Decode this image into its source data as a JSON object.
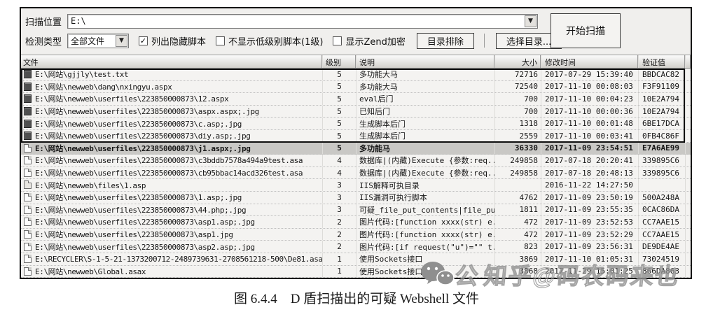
{
  "toolbar": {
    "scan_location_label": "扫描位置",
    "scan_location_value": "E:\\",
    "detect_type_label": "检测类型",
    "detect_type_value": "全部文件",
    "checkboxes": [
      {
        "label": "列出隐藏脚本",
        "checked": true
      },
      {
        "label": "不显示低级别脚本(1级)",
        "checked": false
      },
      {
        "label": "显示Zend加密",
        "checked": false
      }
    ],
    "dir_exclude_label": "目录排除",
    "select_dir_label": "选择目录...",
    "start_scan_label": "开始扫描"
  },
  "table": {
    "headers": [
      "文件",
      "级别",
      "说明",
      "大小",
      "修改时间",
      "验证值"
    ],
    "rows": [
      {
        "icon": "dark",
        "file": "E:\\网站\\gjjly\\test.txt",
        "level": "5",
        "desc": "多功能大马",
        "size": "72716",
        "time": "2017-07-29 15:39:40",
        "hash": "BBDCAC82",
        "boxed": true
      },
      {
        "icon": "dark",
        "file": "E:\\网站\\newweb\\dang\\nxingyu.aspx",
        "level": "5",
        "desc": "多功能大马",
        "size": "72540",
        "time": "2017-11-10 00:08:03",
        "hash": "F3F91109",
        "boxed": true
      },
      {
        "icon": "dark",
        "file": "E:\\网站\\newweb\\userfiles\\223850000873\\12.aspx",
        "level": "5",
        "desc": "eval后门",
        "size": "700",
        "time": "2017-11-10 00:04:23",
        "hash": "10E2A794",
        "boxed": true
      },
      {
        "icon": "dark",
        "file": "E:\\网站\\newweb\\userfiles\\223850000873\\aspx.aspx;.jpg",
        "level": "5",
        "desc": "已知后门",
        "size": "700",
        "time": "2017-11-10 00:00:36",
        "hash": "10E2A794",
        "boxed": true
      },
      {
        "icon": "dark",
        "file": "E:\\网站\\newweb\\userfiles\\223850000873\\c.asp;.jpg",
        "level": "5",
        "desc": "生成脚本后门",
        "size": "1318",
        "time": "2017-11-10 00:01:48",
        "hash": "6BE17DCA",
        "boxed": true
      },
      {
        "icon": "dark",
        "file": "E:\\网站\\newweb\\userfiles\\223850000873\\diy.asp;.jpg",
        "level": "5",
        "desc": "生成脚本后门",
        "size": "2559",
        "time": "2017-11-10 00:03:41",
        "hash": "0FB4C86F",
        "boxed": true
      },
      {
        "icon": "page",
        "file": "E:\\网站\\newweb\\userfiles\\223850000873\\j1.aspx;.jpg",
        "level": "5",
        "desc": "多功能马",
        "size": "36330",
        "time": "2017-11-09 23:54:51",
        "hash": "E7A6AE99",
        "selected": true
      },
      {
        "icon": "page",
        "file": "E:\\网站\\newweb\\userfiles\\223850000873\\c3bddb7578a494a9test.asa",
        "level": "4",
        "desc": "数据库|(内藏)Execute {参数:req...",
        "size": "249858",
        "time": "2017-07-18 20:20:41",
        "hash": "339895C6"
      },
      {
        "icon": "page",
        "file": "E:\\网站\\newweb\\userfiles\\223850000873\\cb95bbac14acd326test.asa",
        "level": "4",
        "desc": "数据库|(内藏)Execute {参数:req...",
        "size": "249858",
        "time": "2017-07-18 20:48:13",
        "hash": "339895C6"
      },
      {
        "icon": "folder",
        "file": "E:\\网站\\newweb\\files\\1.asp",
        "level": "3",
        "desc": "IIS解释可执目录",
        "size": "",
        "time": "2016-11-22 14:27:50",
        "hash": ""
      },
      {
        "icon": "page",
        "file": "E:\\网站\\newweb\\userfiles\\223850000873\\1.asp;.jpg",
        "level": "3",
        "desc": "IIS漏洞可执行脚本",
        "size": "4762",
        "time": "2017-11-09 23:50:19",
        "hash": "500A248A"
      },
      {
        "icon": "page",
        "file": "E:\\网站\\newweb\\userfiles\\223850000873\\44.php;.jpg",
        "level": "3",
        "desc": "可疑_file_put_contents|file_pu...",
        "size": "1811",
        "time": "2017-11-09 23:55:35",
        "hash": "0CAC86DA"
      },
      {
        "icon": "page",
        "file": "E:\\网站\\newweb\\userfiles\\223850000873\\asp1.asp;.jpg",
        "level": "2",
        "desc": "图片代码:[function xxxx(str) e...",
        "size": "472",
        "time": "2017-11-09 23:52:53",
        "hash": "CC7AAE15"
      },
      {
        "icon": "page",
        "file": "E:\\网站\\newweb\\userfiles\\223850000873\\asp1.jpg",
        "level": "2",
        "desc": "图片代码:[function xxxx(str) e...",
        "size": "472",
        "time": "2017-11-09 23:52:29",
        "hash": "CC7AAE15"
      },
      {
        "icon": "page",
        "file": "E:\\网站\\newweb\\userfiles\\223850000873\\asp2.asp;.jpg",
        "level": "2",
        "desc": "图片代码:[if request(\"u\")=\"\" t...",
        "size": "823",
        "time": "2017-11-09 23:56:31",
        "hash": "DE9DE4AE"
      },
      {
        "icon": "page",
        "file": "E:\\RECYCLER\\S-1-5-21-1373200712-2489739631-2708561218-500\\De81.asax",
        "level": "1",
        "desc": "使用Sockets接口",
        "size": "3869",
        "time": "2017-11-10 01:05:31",
        "hash": "73024519"
      },
      {
        "icon": "page",
        "file": "E:\\网站\\newweb\\Global.asax",
        "level": "1",
        "desc": "使用Sockets接口",
        "size": "3868",
        "time": "2017-11-29 15:01:25",
        "hash": "866DA863"
      }
    ]
  },
  "watermark": {
    "prefix": "公",
    "text": "知乎@码农码来也"
  },
  "caption": "图 6.4.4　D 盾扫描出的可疑 Webshell 文件"
}
